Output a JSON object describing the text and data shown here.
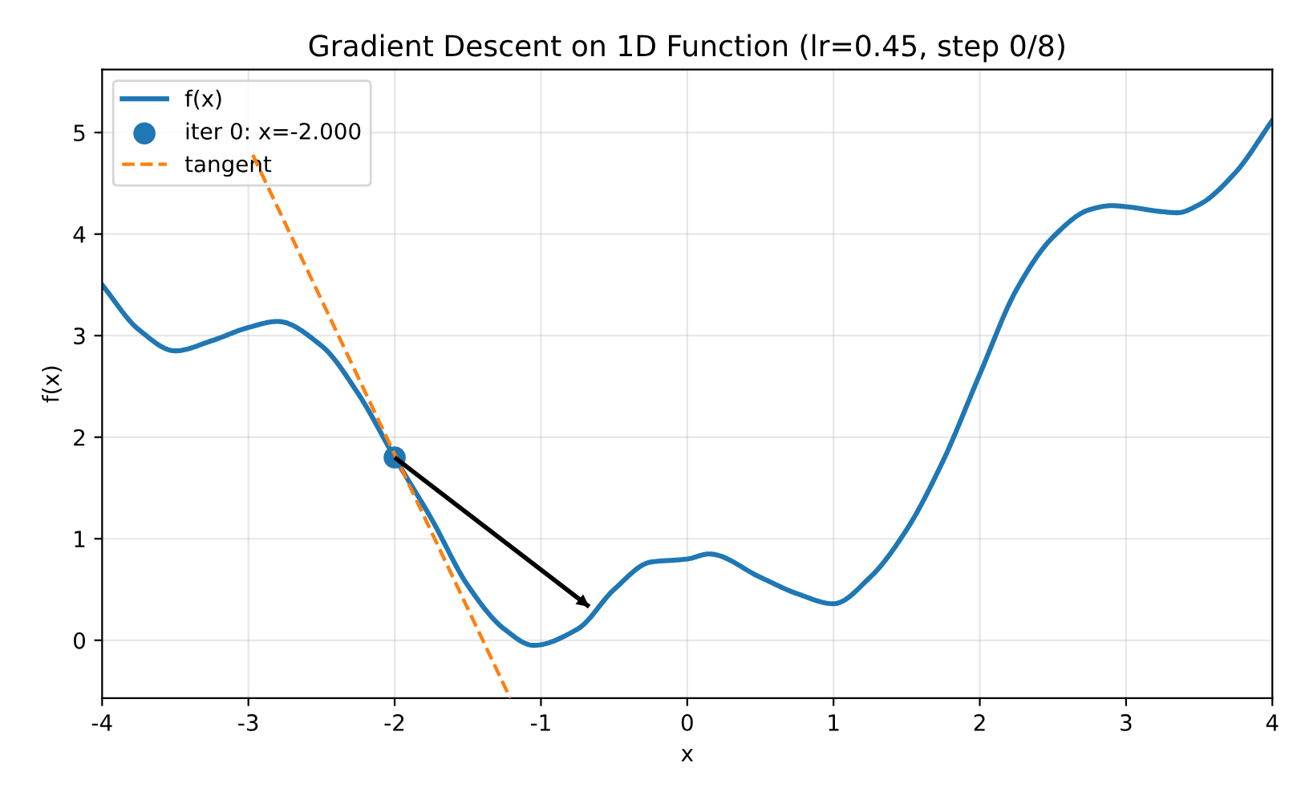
{
  "chart_data": {
    "type": "line",
    "title": "Gradient Descent on 1D Function (lr=0.45, step 0/8)",
    "xlabel": "x",
    "ylabel": "f(x)",
    "xlim": [
      -4,
      4
    ],
    "ylim": [
      -0.57,
      5.62
    ],
    "xticks": [
      -4,
      -3,
      -2,
      -1,
      0,
      1,
      2,
      3,
      4
    ],
    "yticks": [
      0,
      1,
      2,
      3,
      4,
      5
    ],
    "grid": true,
    "legend": "top left",
    "series": [
      {
        "name": "f(x)",
        "type": "line",
        "color": "#1f77b4",
        "line_style": "solid",
        "x": [
          -4,
          -3.75,
          -3.5,
          -3.25,
          -3,
          -2.8,
          -2.5,
          -2.25,
          -2,
          -1.75,
          -1.5,
          -1.25,
          -1.05,
          -0.75,
          -0.5,
          -0.25,
          0,
          0.15,
          0.5,
          0.75,
          1,
          1.25,
          1.5,
          1.75,
          2,
          2.25,
          2.5,
          2.75,
          2.9,
          3,
          3.25,
          3.35,
          3.5,
          3.75,
          4
        ],
        "values": [
          3.5,
          3.06,
          2.85,
          2.95,
          3.08,
          3.14,
          2.9,
          2.43,
          1.8,
          1.2,
          0.54,
          0.11,
          -0.05,
          0.11,
          0.5,
          0.77,
          0.8,
          0.85,
          0.62,
          0.46,
          0.36,
          0.62,
          1.09,
          1.77,
          2.62,
          3.45,
          3.97,
          4.24,
          4.28,
          4.27,
          4.22,
          4.21,
          4.29,
          4.61,
          5.12
        ]
      },
      {
        "name": "iter 0: x=-2.000",
        "type": "scatter",
        "color": "#1f77b4",
        "marker": "circle",
        "x": [
          -2
        ],
        "values": [
          1.8
        ]
      },
      {
        "name": "tangent",
        "type": "line",
        "color": "#ff7f0e",
        "line_style": "dashed",
        "x": [
          -2.97,
          -1.21
        ],
        "values": [
          4.78,
          -0.57
        ]
      },
      {
        "type": "line",
        "color": "#000000",
        "x": [
          -2,
          -0.67
        ],
        "values": [
          1.8,
          0.33
        ]
      }
    ]
  }
}
